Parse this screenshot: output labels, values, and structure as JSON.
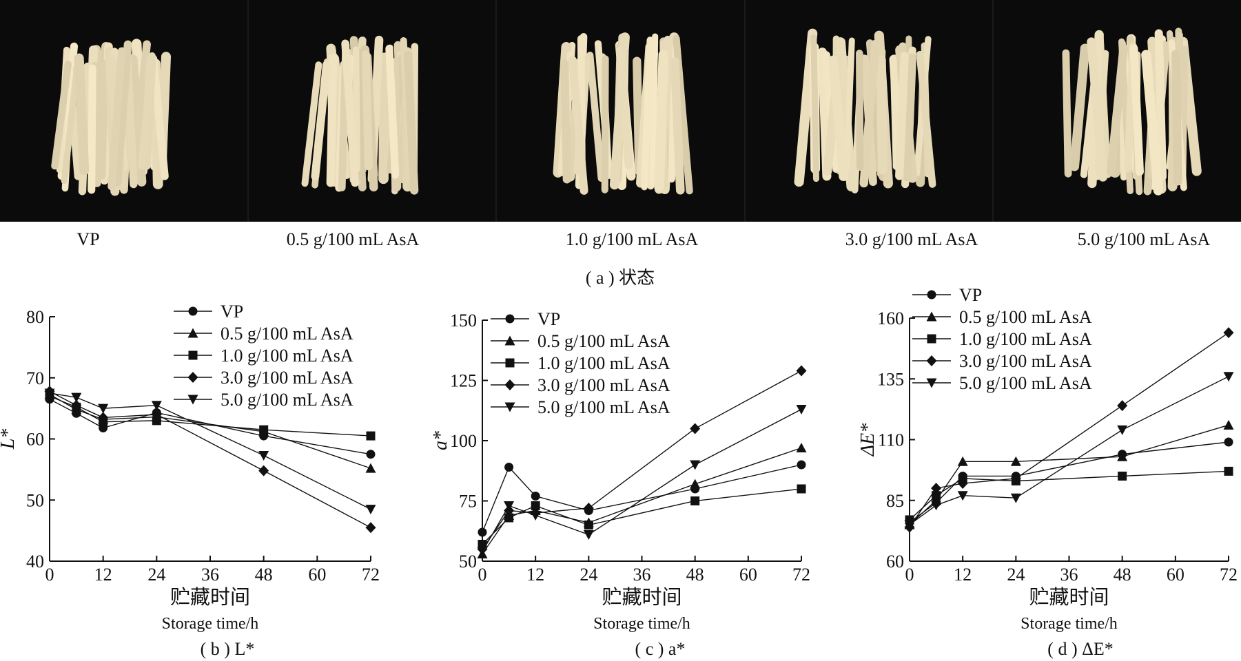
{
  "photos": {
    "labels": [
      "VP",
      "0.5 g/100 mL AsA",
      "1.0 g/100 mL AsA",
      "3.0 g/100 mL AsA",
      "5.0 g/100 mL AsA"
    ],
    "caption": "( a )  状态"
  },
  "chart_data": [
    {
      "type": "line",
      "caption": "( b )  L*",
      "ylabel": "L*",
      "xlabel": "贮藏时间",
      "xlabel2": "Storage time/h",
      "x": [
        0,
        6,
        12,
        24,
        48,
        72
      ],
      "xticks": [
        0,
        12,
        24,
        36,
        48,
        60,
        72
      ],
      "yticks": [
        40,
        50,
        60,
        70,
        80
      ],
      "xlim": [
        0,
        72
      ],
      "ylim": [
        40,
        80
      ],
      "legend_position": "top-right",
      "series": [
        {
          "name": "VP",
          "marker": "circle",
          "values": [
            66.5,
            64.2,
            61.8,
            64.3,
            60.5,
            57.5
          ]
        },
        {
          "name": "0.5 g/100 mL AsA",
          "marker": "triangle-up",
          "values": [
            67.3,
            64.8,
            63.2,
            63.6,
            61.2,
            55.2
          ]
        },
        {
          "name": "1.0 g/100 mL AsA",
          "marker": "square",
          "values": [
            67.0,
            65.2,
            62.8,
            63.0,
            61.5,
            60.5
          ]
        },
        {
          "name": "3.0 g/100 mL AsA",
          "marker": "diamond",
          "values": [
            67.8,
            65.5,
            63.5,
            64.0,
            54.8,
            45.5
          ]
        },
        {
          "name": "5.0 g/100 mL AsA",
          "marker": "triangle-down",
          "values": [
            67.5,
            66.8,
            65.0,
            65.5,
            57.3,
            48.5
          ]
        }
      ]
    },
    {
      "type": "line",
      "caption": "( c )  a*",
      "ylabel": "a*",
      "xlabel": "贮藏时间",
      "xlabel2": "Storage time/h",
      "x": [
        0,
        6,
        12,
        24,
        48,
        72
      ],
      "xticks": [
        0,
        12,
        24,
        36,
        48,
        60,
        72
      ],
      "yticks": [
        50,
        75,
        100,
        125,
        150
      ],
      "xlim": [
        0,
        72
      ],
      "ylim": [
        50,
        150
      ],
      "legend_position": "top-right",
      "series": [
        {
          "name": "VP",
          "marker": "circle",
          "values": [
            62,
            89,
            77,
            71,
            80,
            90
          ]
        },
        {
          "name": "0.5 g/100 mL AsA",
          "marker": "triangle-up",
          "values": [
            53,
            69,
            71,
            66,
            82,
            97
          ]
        },
        {
          "name": "1.0 g/100 mL AsA",
          "marker": "square",
          "values": [
            57,
            68,
            73,
            65,
            75,
            80
          ]
        },
        {
          "name": "3.0 g/100 mL AsA",
          "marker": "diamond",
          "values": [
            55,
            71,
            70,
            72,
            105,
            129
          ]
        },
        {
          "name": "5.0 g/100 mL AsA",
          "marker": "triangle-down",
          "values": [
            54,
            73,
            69,
            61,
            90,
            113
          ]
        }
      ]
    },
    {
      "type": "line",
      "caption": "( d )  ΔE*",
      "ylabel": "ΔE*",
      "xlabel": "贮藏时间",
      "xlabel2": "Storage time/h",
      "x": [
        0,
        6,
        12,
        24,
        48,
        72
      ],
      "xticks": [
        0,
        12,
        24,
        36,
        48,
        60,
        72
      ],
      "yticks": [
        60,
        85,
        110,
        135,
        160
      ],
      "xlim": [
        0,
        72
      ],
      "ylim": [
        60,
        160
      ],
      "legend_position": "top-left",
      "series": [
        {
          "name": "VP",
          "marker": "circle",
          "values": [
            76,
            84,
            95,
            95,
            104,
            109
          ]
        },
        {
          "name": "0.5 g/100 mL AsA",
          "marker": "triangle-up",
          "values": [
            75,
            85,
            101,
            101,
            103,
            116
          ]
        },
        {
          "name": "1.0 g/100 mL AsA",
          "marker": "square",
          "values": [
            77,
            87,
            94,
            93,
            95,
            97
          ]
        },
        {
          "name": "3.0 g/100 mL AsA",
          "marker": "diamond",
          "values": [
            74,
            90,
            92,
            94,
            124,
            154
          ]
        },
        {
          "name": "5.0 g/100 mL AsA",
          "marker": "triangle-down",
          "values": [
            75,
            83,
            87,
            86,
            114,
            136
          ]
        }
      ]
    }
  ]
}
